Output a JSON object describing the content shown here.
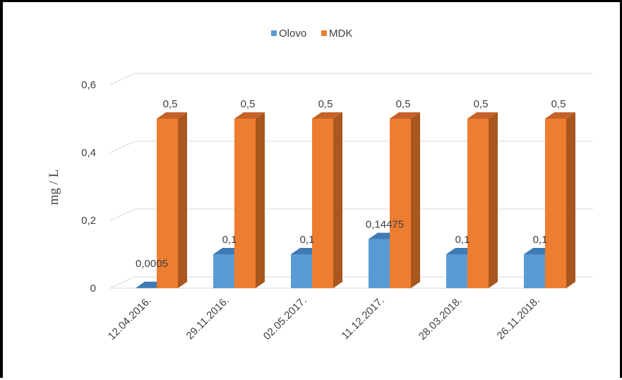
{
  "chart_data": {
    "type": "bar",
    "style": "3d-clustered-column",
    "categories": [
      "12.04.2016.",
      "29.11.2016.",
      "02.05.2017.",
      "11.12.2017.",
      "28.03.2018.",
      "26.11.2018."
    ],
    "series": [
      {
        "name": "Olovo",
        "values": [
          0.0005,
          0.1,
          0.1,
          0.14475,
          0.1,
          0.1
        ],
        "labels": [
          "0,0005",
          "0,1",
          "0,1",
          "0,14475",
          "0,1",
          "0,1"
        ],
        "color": "#5b9bd5",
        "dark": "#3e75a8",
        "top": "#3f7ab5"
      },
      {
        "name": "MDK",
        "values": [
          0.5,
          0.5,
          0.5,
          0.5,
          0.5,
          0.5
        ],
        "labels": [
          "0,5",
          "0,5",
          "0,5",
          "0,5",
          "0,5",
          "0,5"
        ],
        "color": "#ed7d31",
        "dark": "#a9561f",
        "top": "#c4622a"
      }
    ],
    "ylabel": "mg / L",
    "ylim": [
      0,
      0.6
    ],
    "yticks": [
      0,
      0.2,
      0.4,
      0.6
    ],
    "ytick_labels": [
      "0",
      "0,2",
      "0,4",
      "0,6"
    ],
    "grid": true,
    "legend": "top-center"
  }
}
